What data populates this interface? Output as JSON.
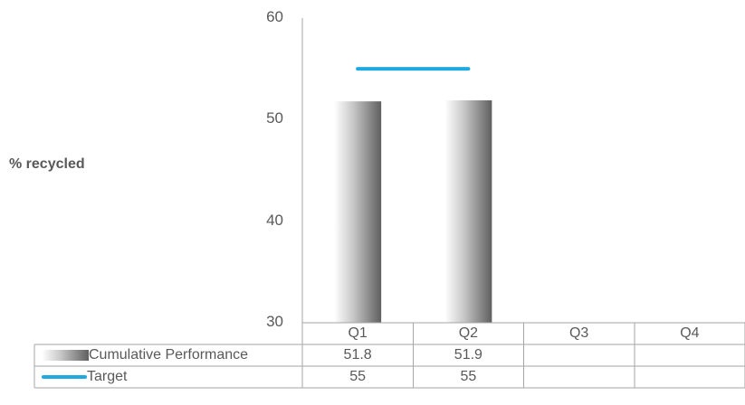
{
  "chart_data": {
    "type": "bar",
    "categories": [
      "Q1",
      "Q2",
      "Q3",
      "Q4"
    ],
    "ylabel": "% recycled",
    "ylim": [
      30,
      60
    ],
    "yticks": [
      30,
      40,
      50,
      60
    ],
    "series": [
      {
        "name": "Cumulative Performance",
        "type": "bar",
        "values": [
          51.8,
          51.9,
          null,
          null
        ],
        "labels": [
          "51.8",
          "51.9",
          "",
          ""
        ]
      },
      {
        "name": "Target",
        "type": "line",
        "color": "#1fa9e1",
        "values": [
          55,
          55,
          null,
          null
        ],
        "labels": [
          "55",
          "55",
          "",
          ""
        ]
      }
    ],
    "data_table": true,
    "grid": false
  }
}
